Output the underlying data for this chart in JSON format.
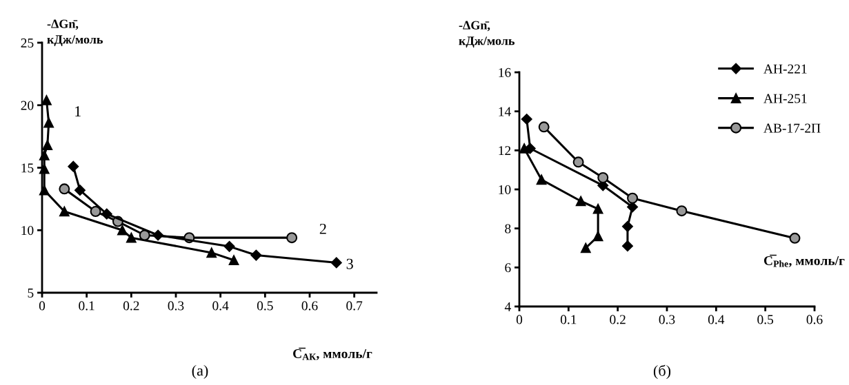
{
  "chart_data": [
    {
      "type": "line",
      "title": "(а)",
      "xlabel": "C̅$_{АК}$, ммоль/г",
      "ylabel": "-ΔGn̄,\nкДж/моль",
      "xlim": [
        0,
        0.75
      ],
      "ylim": [
        5,
        25
      ],
      "xticks": [
        0,
        0.1,
        0.2,
        0.3,
        0.4,
        0.5,
        0.6,
        0.7
      ],
      "yticks": [
        5,
        10,
        15,
        20,
        25
      ],
      "grid": false,
      "legend": false,
      "line_style": "solid",
      "series": [
        {
          "color": "#000000",
          "marker": "triangle",
          "x": [
            0.01,
            0.015,
            0.012,
            0.005,
            0.005,
            0.005,
            0.05,
            0.18,
            0.2,
            0.38,
            0.43
          ],
          "values": [
            20.4,
            18.6,
            16.8,
            16.0,
            14.9,
            13.2,
            11.5,
            10.0,
            9.4,
            8.2,
            7.6
          ]
        },
        {
          "color": "#999999",
          "marker": "circle",
          "x": [
            0.05,
            0.12,
            0.17,
            0.23,
            0.33,
            0.56
          ],
          "values": [
            13.3,
            11.5,
            10.7,
            9.6,
            9.4,
            9.4
          ]
        },
        {
          "color": "#000000",
          "marker": "diamond",
          "x": [
            0.07,
            0.085,
            0.145,
            0.26,
            0.42,
            0.48,
            0.66
          ],
          "values": [
            15.1,
            13.2,
            11.3,
            9.6,
            8.7,
            8.0,
            7.4
          ]
        }
      ],
      "annotations": [
        "1",
        "2",
        "3"
      ]
    },
    {
      "type": "line",
      "title": "(б)",
      "xlabel": "C̅$_{Phe}$, ммоль/г",
      "ylabel": "-ΔGn̄,\nкДж/моль",
      "xlim": [
        0,
        0.6
      ],
      "ylim": [
        4,
        16
      ],
      "xticks": [
        0,
        0.1,
        0.2,
        0.3,
        0.4,
        0.5,
        0.6
      ],
      "yticks": [
        4,
        6,
        8,
        10,
        12,
        14,
        16
      ],
      "grid": false,
      "legend": "top right",
      "line_style": "solid",
      "series": [
        {
          "name": "АН-221",
          "color": "#000000",
          "marker": "diamond",
          "x": [
            0.015,
            0.022,
            0.17,
            0.23,
            0.22,
            0.22
          ],
          "values": [
            13.6,
            12.1,
            10.2,
            9.1,
            8.1,
            7.1
          ]
        },
        {
          "name": "АН-251",
          "color": "#000000",
          "marker": "triangle",
          "x": [
            0.01,
            0.045,
            0.125,
            0.16,
            0.16,
            0.135
          ],
          "values": [
            12.1,
            10.5,
            9.4,
            9.0,
            7.6,
            7.0
          ]
        },
        {
          "name": "АВ-17-2П",
          "color": "#999999",
          "marker": "circle",
          "x": [
            0.05,
            0.12,
            0.17,
            0.23,
            0.33,
            0.56
          ],
          "values": [
            13.2,
            11.4,
            10.6,
            9.55,
            8.9,
            7.5
          ]
        }
      ]
    }
  ]
}
